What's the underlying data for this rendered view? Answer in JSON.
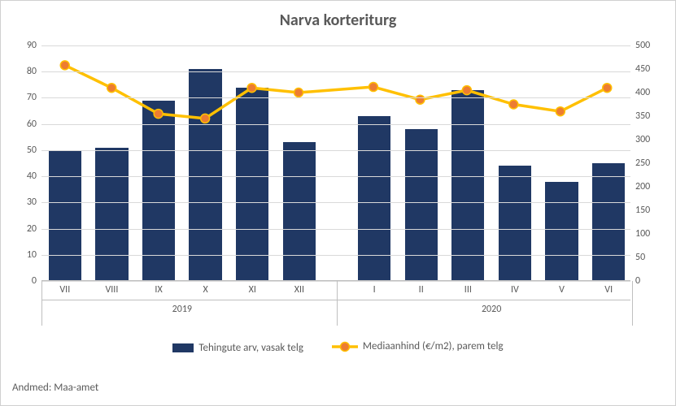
{
  "chart": {
    "type": "bar+line",
    "title": "Narva korteriturg",
    "title_fontsize": 20,
    "title_color": "#595959",
    "background_color": "#ffffff",
    "border_color": "#d0d0d0",
    "grid_color": "#d9d9d9",
    "axis_line_color": "#bfbfbf",
    "tick_fontsize": 12,
    "tick_color": "#595959",
    "categories": [
      "VII",
      "VIII",
      "IX",
      "X",
      "XI",
      "XII",
      "I",
      "II",
      "III",
      "IV",
      "V",
      "VI"
    ],
    "groups": [
      {
        "label": "2019",
        "span": [
          0,
          5
        ]
      },
      {
        "label": "2020",
        "span": [
          6,
          11
        ]
      }
    ],
    "gap_after_index": 5,
    "left_axis": {
      "min": 0,
      "max": 90,
      "step": 10
    },
    "right_axis": {
      "min": 0,
      "max": 500,
      "step": 50
    },
    "bars": {
      "label": "Tehingute arv, vasak telg",
      "color": "#203864",
      "bar_width_ratio": 0.7,
      "values": [
        50,
        51,
        69,
        81,
        74,
        53,
        63,
        58,
        73,
        44,
        38,
        45
      ]
    },
    "line": {
      "label": "Mediaanhind (€/m2), parem telg",
      "line_color": "#ffc000",
      "line_width": 3.5,
      "marker_fill": "#ed7d31",
      "marker_stroke": "#ffc000",
      "marker_radius": 5.5,
      "values": [
        458,
        410,
        355,
        345,
        410,
        400,
        412,
        385,
        405,
        375,
        360,
        410
      ]
    },
    "legend_fontsize": 13,
    "footer": "Andmed: Maa-amet"
  }
}
